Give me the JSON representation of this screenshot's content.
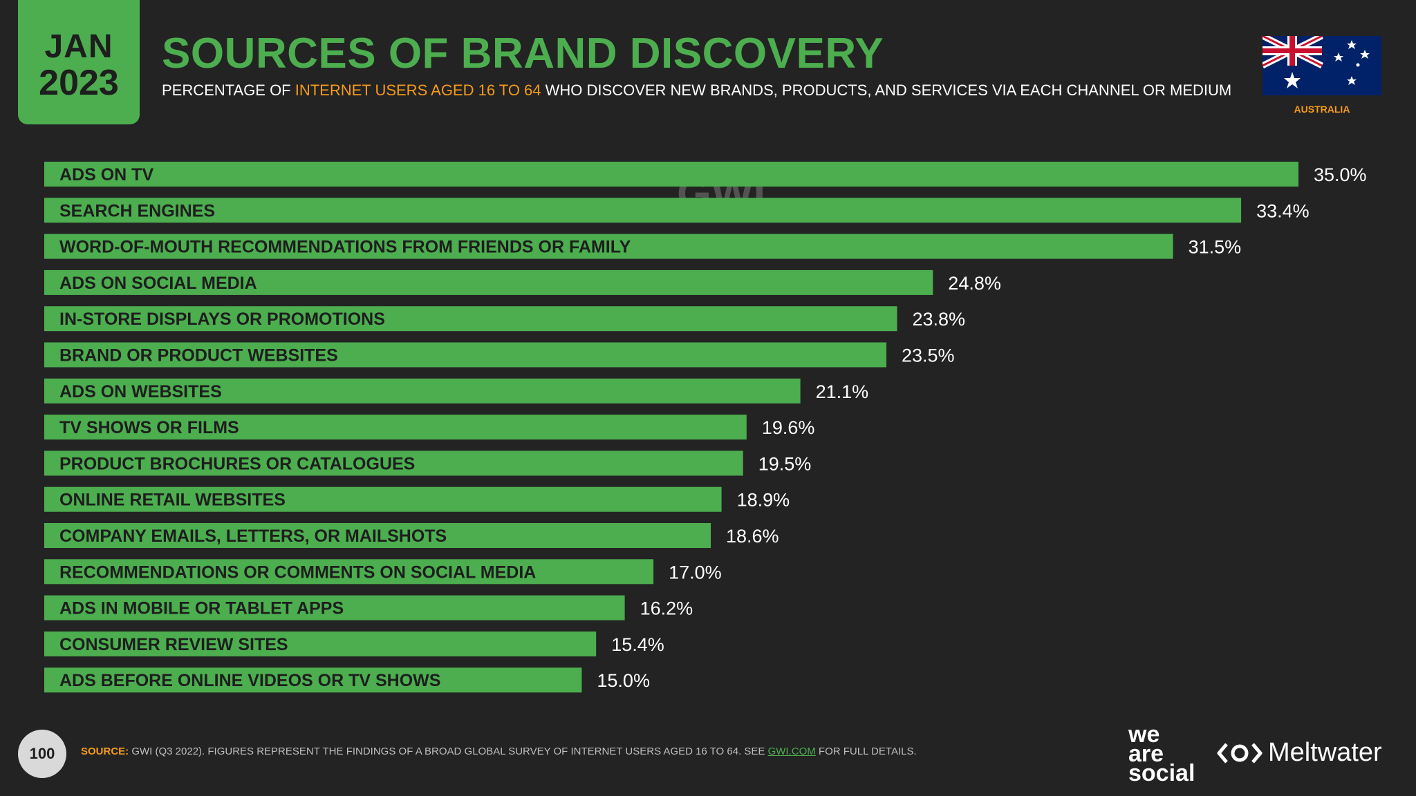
{
  "header": {
    "month": "JAN",
    "year": "2023",
    "title": "SOURCES OF BRAND DISCOVERY",
    "subtitle_pre": "PERCENTAGE OF ",
    "subtitle_highlight": "INTERNET USERS AGED 16 TO 64",
    "subtitle_post": " WHO DISCOVER NEW BRANDS, PRODUCTS, AND SERVICES VIA EACH CHANNEL OR MEDIUM",
    "country": "AUSTRALIA"
  },
  "colors": {
    "accent": "#4cae4f",
    "highlight": "#f59b1b",
    "background": "#232323",
    "bar_text": "#1e1e1e"
  },
  "chart_data": {
    "type": "bar",
    "orientation": "horizontal",
    "title": "SOURCES OF BRAND DISCOVERY",
    "xlabel": "",
    "ylabel": "",
    "xlim": [
      0,
      35
    ],
    "unit": "%",
    "watermark": "GWI.",
    "categories": [
      "ADS ON TV",
      "SEARCH ENGINES",
      "WORD-OF-MOUTH RECOMMENDATIONS FROM FRIENDS OR FAMILY",
      "ADS ON SOCIAL MEDIA",
      "IN-STORE DISPLAYS OR PROMOTIONS",
      "BRAND OR PRODUCT WEBSITES",
      "ADS ON WEBSITES",
      "TV SHOWS OR FILMS",
      "PRODUCT BROCHURES OR CATALOGUES",
      "ONLINE RETAIL WEBSITES",
      "COMPANY EMAILS, LETTERS, OR MAILSHOTS",
      "RECOMMENDATIONS OR COMMENTS ON SOCIAL MEDIA",
      "ADS IN MOBILE OR TABLET APPS",
      "CONSUMER REVIEW SITES",
      "ADS BEFORE ONLINE VIDEOS OR TV SHOWS"
    ],
    "values": [
      35.0,
      33.4,
      31.5,
      24.8,
      23.8,
      23.5,
      21.1,
      19.6,
      19.5,
      18.9,
      18.6,
      17.0,
      16.2,
      15.4,
      15.0
    ],
    "value_labels": [
      "35.0%",
      "33.4%",
      "31.5%",
      "24.8%",
      "23.8%",
      "23.5%",
      "21.1%",
      "19.6%",
      "19.5%",
      "18.9%",
      "18.6%",
      "17.0%",
      "16.2%",
      "15.4%",
      "15.0%"
    ]
  },
  "footer": {
    "page_number": "100",
    "source_label": "SOURCE:",
    "source_text": " GWI (Q3 2022). FIGURES REPRESENT THE FINDINGS OF A BROAD GLOBAL SURVEY OF INTERNET USERS AGED 16 TO 64. SEE ",
    "source_link": "GWI.COM",
    "source_tail": " FOR FULL DETAILS.",
    "brand_1_line_1": "we",
    "brand_1_line_2": "are",
    "brand_1_line_3": "social",
    "brand_2": "Meltwater"
  }
}
